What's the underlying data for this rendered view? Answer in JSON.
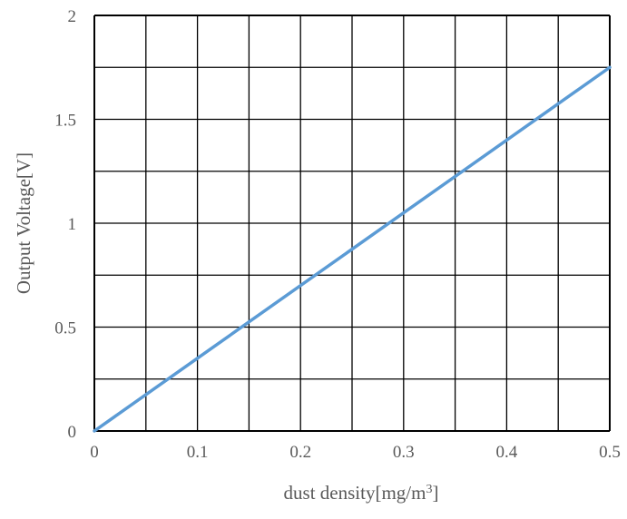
{
  "chart_data": {
    "type": "line",
    "title": "",
    "xlabel": "dust density[mg/m3]",
    "xlabel_parts": {
      "main": "dust density[mg/m",
      "sup": "3",
      "close": "]"
    },
    "ylabel": "Output Voltage[V]",
    "xlim": [
      0,
      0.5
    ],
    "ylim": [
      0,
      2
    ],
    "x_ticks": [
      0,
      0.05,
      0.1,
      0.15,
      0.2,
      0.25,
      0.3,
      0.35,
      0.4,
      0.45,
      0.5
    ],
    "x_tick_labels": [
      "0",
      "0.1",
      "0.2",
      "0.3",
      "0.4",
      "0.5"
    ],
    "y_ticks": [
      0,
      0.25,
      0.5,
      0.75,
      1,
      1.25,
      1.5,
      1.75,
      2
    ],
    "y_tick_labels": [
      "0",
      "0.5",
      "1",
      "1.5",
      "2"
    ],
    "grid": true,
    "series": [
      {
        "x": [
          0,
          0.5
        ],
        "y": [
          0,
          1.75
        ],
        "color": "#5b9bd5"
      }
    ]
  },
  "colors": {
    "grid": "#000000",
    "text": "#595959",
    "line": "#5b9bd5"
  }
}
